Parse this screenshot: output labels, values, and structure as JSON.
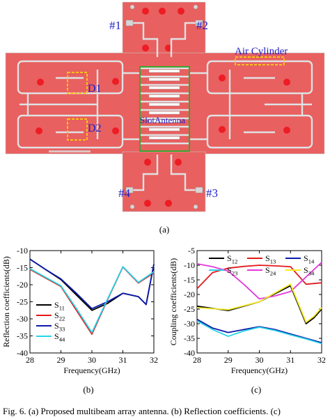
{
  "figure_a": {
    "port_labels": [
      "#1",
      "#2",
      "#3",
      "#4"
    ],
    "annotations": [
      "Air Cylinder",
      "D1",
      "D2",
      "SlotAntenna"
    ],
    "sublabel": "(a)",
    "colors": {
      "substrate": "#e8605f",
      "trace": "#dfe2e4",
      "annotation": "#1f22c8",
      "highlight_box": "#f7c21b",
      "slot_box": "#39a62f"
    }
  },
  "figure_b_label": "(b)",
  "figure_c_label": "(c)",
  "caption_fragment": "Fig. 6. (a) Proposed multibeam array antenna. (b) Reflection coefficients. (c)",
  "chart_data": [
    {
      "type": "line",
      "xlabel": "Frequency(GHz)",
      "ylabel": "Reflection coefficients(dB)",
      "xlim": [
        28,
        32
      ],
      "ylim": [
        -40,
        -10
      ],
      "xticks": [
        28,
        29,
        30,
        31,
        32
      ],
      "yticks": [
        -10,
        -15,
        -20,
        -25,
        -30,
        -35,
        -40
      ],
      "legend_position": "bottom-left",
      "series": [
        {
          "name": "S11",
          "base": "S",
          "sub": "11",
          "color": "#000000",
          "x": [
            28,
            28.5,
            29,
            29.5,
            30,
            30.5,
            31,
            31.5,
            31.75,
            32
          ],
          "y": [
            -12.5,
            -15.5,
            -18.5,
            -23,
            -27.5,
            -25.5,
            -22.5,
            -23.5,
            -25.8,
            -14
          ]
        },
        {
          "name": "S22",
          "base": "S",
          "sub": "22",
          "color": "#e41a1c",
          "x": [
            28,
            28.5,
            29,
            29.5,
            30,
            30.5,
            31,
            31.5,
            32
          ],
          "y": [
            -15.5,
            -18,
            -20.5,
            -27.5,
            -34.5,
            -24.5,
            -14.8,
            -19.5,
            -16.5
          ]
        },
        {
          "name": "S33",
          "base": "S",
          "sub": "33",
          "color": "#0a1aa8",
          "x": [
            28,
            28.5,
            29,
            29.5,
            30,
            30.5,
            31,
            31.5,
            31.75,
            32
          ],
          "y": [
            -12.5,
            -15.5,
            -18.3,
            -22.5,
            -27,
            -25,
            -22.5,
            -23.5,
            -25.8,
            -14
          ]
        },
        {
          "name": "S44",
          "base": "S",
          "sub": "44",
          "color": "#26d3e8",
          "x": [
            28,
            28.5,
            29,
            29.5,
            30,
            30.5,
            31,
            31.5,
            32
          ],
          "y": [
            -15.3,
            -17.8,
            -20.3,
            -27,
            -34,
            -24.3,
            -14.7,
            -19.3,
            -16.2
          ]
        }
      ]
    },
    {
      "type": "line",
      "xlabel": "Frequency(GHz)",
      "ylabel": "Coupling coefficients(dB)",
      "xlim": [
        28,
        32
      ],
      "ylim": [
        -40,
        -5
      ],
      "xticks": [
        28,
        29,
        30,
        31,
        32
      ],
      "yticks": [
        -5,
        -10,
        -15,
        -20,
        -25,
        -30,
        -35,
        -40
      ],
      "legend_position": "top",
      "series": [
        {
          "name": "S12",
          "base": "S",
          "sub": "12",
          "color": "#000000",
          "x": [
            28,
            29,
            30,
            31,
            31.5,
            31.75,
            32
          ],
          "y": [
            -24,
            -25.5,
            -22.5,
            -17,
            -30,
            -28,
            -25
          ]
        },
        {
          "name": "S13",
          "base": "S",
          "sub": "13",
          "color": "#e41a1c",
          "x": [
            28,
            28.5,
            29,
            29.5,
            30,
            30.5,
            31,
            31.5,
            32
          ],
          "y": [
            -18,
            -12.5,
            -11,
            -10.4,
            -10,
            -10.2,
            -10.5,
            -16.5,
            -16
          ]
        },
        {
          "name": "S14",
          "base": "S",
          "sub": "14",
          "color": "#0a1aa8",
          "x": [
            28,
            28.5,
            29,
            29.5,
            30,
            30.5,
            31,
            31.5,
            32
          ],
          "y": [
            -28.5,
            -31.5,
            -33,
            -32,
            -31,
            -32,
            -33.5,
            -35,
            -36.5
          ]
        },
        {
          "name": "S23",
          "base": "S",
          "sub": "23",
          "color": "#26d3e8",
          "x": [
            28,
            28.5,
            29,
            29.5,
            30,
            30.5,
            31,
            31.5,
            32
          ],
          "y": [
            -29,
            -32,
            -34.3,
            -32.5,
            -31.2,
            -32.3,
            -33.8,
            -35.2,
            -36.8
          ]
        },
        {
          "name": "S24",
          "base": "S",
          "sub": "24",
          "color": "#e23ad9",
          "x": [
            28,
            28.5,
            29,
            29.5,
            30,
            30.5,
            31,
            31.5,
            32
          ],
          "y": [
            -9.5,
            -10.5,
            -12,
            -16.5,
            -21.5,
            -20.5,
            -19,
            -14,
            -9
          ]
        },
        {
          "name": "S34",
          "base": "S",
          "sub": "34",
          "color": "#f3ea23",
          "x": [
            28,
            29,
            30,
            31,
            31.5,
            31.75,
            32
          ],
          "y": [
            -24.5,
            -25.2,
            -22.5,
            -16.5,
            -29.5,
            -27.5,
            -24.5
          ]
        }
      ]
    }
  ]
}
